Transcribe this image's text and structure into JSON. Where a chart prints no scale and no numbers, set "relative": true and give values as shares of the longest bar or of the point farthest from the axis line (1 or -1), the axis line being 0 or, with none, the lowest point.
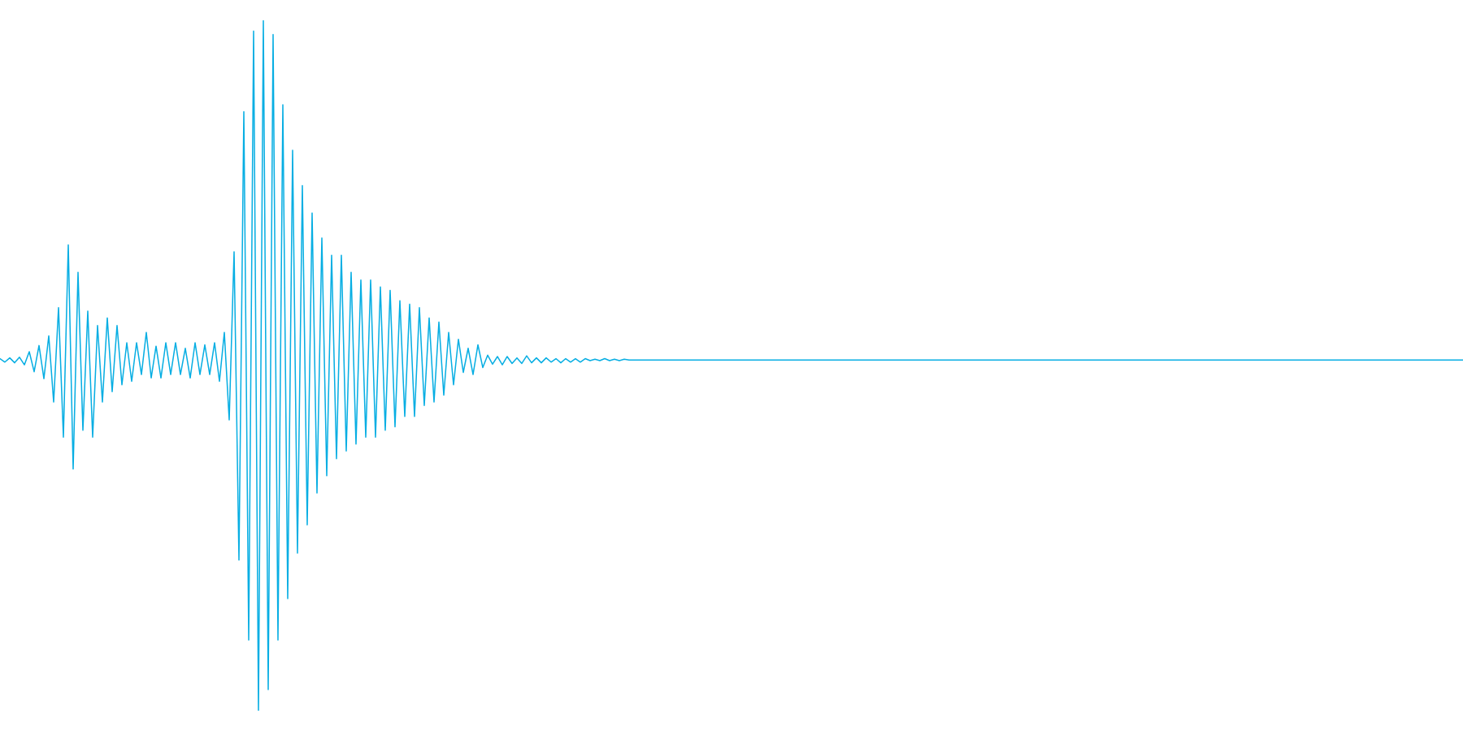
{
  "chart_data": {
    "type": "line",
    "relative": true,
    "categories": [
      null,
      null,
      null,
      null,
      null,
      null,
      null,
      null,
      null,
      null,
      null,
      null,
      null,
      null,
      null,
      null,
      null,
      null,
      null,
      null,
      null,
      null,
      null,
      null,
      null,
      null,
      null,
      null,
      null,
      null,
      null,
      null,
      null,
      null,
      null,
      null,
      null,
      null,
      null,
      null,
      null,
      null,
      null,
      null,
      null,
      null,
      null,
      null,
      null,
      null,
      null,
      null,
      null,
      null,
      null,
      null,
      null,
      null,
      null,
      null,
      null,
      null,
      null,
      null,
      null,
      null,
      null,
      null,
      null,
      null,
      null,
      null,
      null,
      null,
      null,
      null,
      null,
      null,
      null,
      null,
      null,
      null,
      null,
      null,
      null,
      null,
      null,
      null,
      null,
      null,
      null,
      null,
      null,
      null,
      null,
      null,
      null,
      null,
      null,
      null,
      null,
      null,
      null,
      null,
      null,
      null,
      null,
      null,
      null,
      null,
      null,
      null,
      null,
      null,
      null,
      null,
      null,
      null,
      null,
      null,
      null,
      null,
      null,
      null,
      null,
      null,
      null,
      null,
      null,
      null,
      null,
      null,
      null,
      null,
      null,
      null,
      null,
      null,
      null,
      null,
      null,
      null,
      null,
      null,
      null,
      null,
      null,
      null,
      null,
      null,
      null,
      null,
      null,
      null,
      null,
      null,
      null,
      null,
      null,
      null,
      null,
      null,
      null,
      null,
      null,
      null,
      null,
      null,
      null,
      null,
      null,
      null,
      null,
      null,
      null,
      null,
      null,
      null,
      null,
      null,
      null,
      null,
      null,
      null,
      null,
      null,
      null,
      null,
      null,
      null,
      null,
      null,
      null,
      null,
      null,
      null,
      null,
      null,
      null,
      null,
      null,
      null,
      null,
      null,
      null,
      null,
      null,
      null,
      null,
      null,
      null,
      null,
      null,
      null,
      null,
      null,
      null,
      null,
      null,
      null,
      null,
      null,
      null,
      null,
      null,
      null,
      null,
      null,
      null,
      null,
      null,
      null,
      null,
      null,
      null,
      null,
      null,
      null,
      null,
      null,
      null,
      null,
      null,
      null,
      null,
      null,
      null,
      null,
      null,
      null,
      null,
      null,
      null,
      null,
      null,
      null,
      null,
      null,
      null,
      null,
      null,
      null,
      null,
      null,
      null,
      null,
      null,
      null,
      null,
      null,
      null,
      null,
      null,
      null,
      null,
      null,
      null,
      null,
      null,
      null,
      null,
      null,
      null,
      null,
      null,
      null,
      null,
      null,
      null,
      null,
      null,
      null,
      null,
      null,
      null,
      null,
      null,
      null,
      null,
      null,
      null
    ],
    "series": [
      {
        "color": "#07aee3",
        "values": [
          0.51,
          0.505,
          0.511,
          0.504,
          0.512,
          0.501,
          0.52,
          0.491,
          0.529,
          0.481,
          0.543,
          0.447,
          0.584,
          0.396,
          0.675,
          0.35,
          0.635,
          0.406,
          0.579,
          0.396,
          0.558,
          0.447,
          0.569,
          0.462,
          0.558,
          0.472,
          0.533,
          0.477,
          0.533,
          0.487,
          0.548,
          0.482,
          0.528,
          0.482,
          0.533,
          0.487,
          0.533,
          0.487,
          0.525,
          0.482,
          0.533,
          0.487,
          0.53,
          0.487,
          0.533,
          0.477,
          0.548,
          0.421,
          0.665,
          0.218,
          0.868,
          0.102,
          0.985,
          0,
          1,
          0.03,
          0.98,
          0.102,
          0.878,
          0.162,
          0.812,
          0.228,
          0.761,
          0.269,
          0.721,
          0.315,
          0.685,
          0.34,
          0.66,
          0.365,
          0.66,
          0.376,
          0.635,
          0.386,
          0.624,
          0.396,
          0.624,
          0.396,
          0.614,
          0.406,
          0.609,
          0.411,
          0.594,
          0.426,
          0.589,
          0.426,
          0.584,
          0.442,
          0.569,
          0.447,
          0.563,
          0.457,
          0.548,
          0.472,
          0.538,
          0.49,
          0.525,
          0.487,
          0.53,
          0.497,
          0.515,
          0.502,
          0.513,
          0.501,
          0.513,
          0.503,
          0.511,
          0.503,
          0.514,
          0.504,
          0.511,
          0.504,
          0.511,
          0.505,
          0.51,
          0.504,
          0.51,
          0.505,
          0.51,
          0.505,
          0.51,
          0.507,
          0.509,
          0.507,
          0.51,
          0.507,
          0.509,
          0.507,
          0.509,
          0.508,
          0.508,
          0.508,
          0.508,
          0.508,
          0.508,
          0.508,
          0.508,
          0.508,
          0.508,
          0.508,
          0.508,
          0.508,
          0.508,
          0.508,
          0.508,
          0.508,
          0.508,
          0.508,
          0.508,
          0.508,
          0.508,
          0.508,
          0.508,
          0.508,
          0.508,
          0.508,
          0.508,
          0.508,
          0.508,
          0.508,
          0.508,
          0.508,
          0.508,
          0.508,
          0.508,
          0.508,
          0.508,
          0.508,
          0.508,
          0.508,
          0.508,
          0.508,
          0.508,
          0.508,
          0.508,
          0.508,
          0.508,
          0.508,
          0.508,
          0.508,
          0.508,
          0.508,
          0.508,
          0.508,
          0.508,
          0.508,
          0.508,
          0.508,
          0.508,
          0.508,
          0.508,
          0.508,
          0.508,
          0.508,
          0.508,
          0.508,
          0.508,
          0.508,
          0.508,
          0.508,
          0.508,
          0.508,
          0.508,
          0.508,
          0.508,
          0.508,
          0.508,
          0.508,
          0.508,
          0.508,
          0.508,
          0.508,
          0.508,
          0.508,
          0.508,
          0.508,
          0.508,
          0.508,
          0.508,
          0.508,
          0.508,
          0.508,
          0.508,
          0.508,
          0.508,
          0.508,
          0.508,
          0.508,
          0.508,
          0.508,
          0.508,
          0.508,
          0.508,
          0.508,
          0.508,
          0.508,
          0.508,
          0.508,
          0.508,
          0.508,
          0.508,
          0.508,
          0.508,
          0.508,
          0.508,
          0.508,
          0.508,
          0.508,
          0.508,
          0.508,
          0.508,
          0.508,
          0.508,
          0.508,
          0.508,
          0.508,
          0.508,
          0.508,
          0.508,
          0.508,
          0.508,
          0.508,
          0.508,
          0.508,
          0.508,
          0.508,
          0.508,
          0.508,
          0.508,
          0.508,
          0.508,
          0.508,
          0.508,
          0.508,
          0.508,
          0.508,
          0.508,
          0.508,
          0.508,
          0.508,
          0.508,
          0.508,
          0.508,
          0.508,
          0.508,
          0.508,
          0.508,
          0.508,
          0.508,
          0.508,
          0.508,
          0.508,
          0.508,
          0.508,
          0.508,
          0.508,
          0.508,
          0.508,
          0.508,
          0.508,
          0.508
        ]
      }
    ]
  }
}
